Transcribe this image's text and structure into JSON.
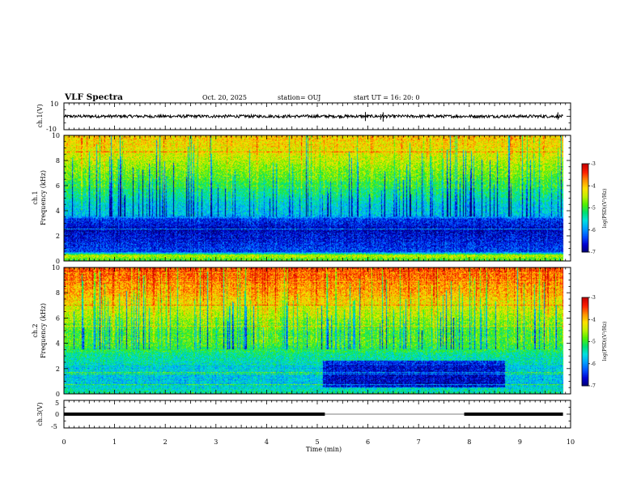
{
  "header": {
    "title": "VLF Spectra",
    "date": "Oct. 20, 2025",
    "station": "station= OUJ",
    "start": "start  UT  =   16: 20: 0"
  },
  "colors": {
    "spectrum_palette": [
      "#000070",
      "#0000d0",
      "#0050ff",
      "#00a0ff",
      "#00e0e0",
      "#00e070",
      "#50f000",
      "#c0f000",
      "#ffe000",
      "#ff9000",
      "#ff2000",
      "#c80000"
    ],
    "trace": "#000000"
  },
  "chart_data": [
    {
      "id": "ch1v",
      "type": "line",
      "ylabel": "ch.1(V)",
      "ylim": [
        -10,
        10
      ],
      "ytick_labels": [
        "10",
        "-10"
      ],
      "baseline": 0,
      "spikes": [
        {
          "x": 5.95,
          "y": [
            -3.5,
            3.2
          ]
        },
        {
          "x": 6.25,
          "y": [
            -2.5,
            1.5
          ]
        },
        {
          "x": 6.3,
          "y": [
            -4,
            3
          ]
        },
        {
          "x": 9.75,
          "y": [
            -2.5,
            3
          ]
        }
      ]
    },
    {
      "id": "ch1",
      "type": "heatmap",
      "ylabel_line1": "ch.1",
      "ylabel_line2": "Frequency  (kHz)",
      "xlim": [
        0,
        10
      ],
      "ylim": [
        0,
        10
      ],
      "data_end_x": 9.85,
      "ytick_labels": [
        "0",
        "2",
        "4",
        "6",
        "8",
        "10"
      ],
      "colorbar": {
        "label": "log(PSD)(V²/Hz)",
        "ticks": [
          "-3",
          "-4",
          "-5",
          "-6",
          "-7"
        ],
        "range": [
          -7,
          -3
        ]
      },
      "profile_log_psd": [
        {
          "f": 0.0,
          "v": -5.0
        },
        {
          "f": 0.4,
          "v": -4.4
        },
        {
          "f": 0.7,
          "v": -6.3
        },
        {
          "f": 1.5,
          "v": -6.5
        },
        {
          "f": 2.5,
          "v": -6.7
        },
        {
          "f": 3.3,
          "v": -6.4
        },
        {
          "f": 3.6,
          "v": -5.7
        },
        {
          "f": 4.5,
          "v": -5.6
        },
        {
          "f": 5.5,
          "v": -5.2
        },
        {
          "f": 7.0,
          "v": -4.7
        },
        {
          "f": 8.5,
          "v": -4.3
        },
        {
          "f": 10.0,
          "v": -4.0
        }
      ],
      "event_segments": []
    },
    {
      "id": "ch2",
      "type": "heatmap",
      "ylabel_line1": "ch.2",
      "ylabel_line2": "Frequency  (kHz)",
      "xlim": [
        0,
        10
      ],
      "ylim": [
        0,
        10
      ],
      "data_end_x": 9.85,
      "ytick_labels": [
        "0",
        "2",
        "4",
        "6",
        "8",
        "10"
      ],
      "colorbar": {
        "label": "log(PSD)(V²/Hz)",
        "ticks": [
          "-3",
          "-4",
          "-5",
          "-6",
          "-7"
        ],
        "range": [
          -7,
          -3
        ]
      },
      "profile_log_psd": [
        {
          "f": 0.0,
          "v": -5.3
        },
        {
          "f": 0.8,
          "v": -5.7
        },
        {
          "f": 2.0,
          "v": -5.6
        },
        {
          "f": 3.0,
          "v": -5.3
        },
        {
          "f": 4.0,
          "v": -4.9
        },
        {
          "f": 5.0,
          "v": -4.9
        },
        {
          "f": 6.5,
          "v": -4.4
        },
        {
          "f": 8.0,
          "v": -3.9
        },
        {
          "f": 10.0,
          "v": -3.5
        }
      ],
      "event_segments": [
        {
          "x0": 5.1,
          "x1": 8.7,
          "f0": 0.5,
          "f1": 2.6,
          "delta": -1.0
        }
      ]
    },
    {
      "id": "ch3v",
      "type": "line",
      "ylabel": "ch.3(V)",
      "ylim": [
        -5,
        5
      ],
      "ytick_labels": [
        "5",
        "0",
        "-5"
      ],
      "xlabel": "Time  (min)",
      "xlim": [
        0,
        10
      ],
      "xtick_labels": [
        "0",
        "1",
        "2",
        "3",
        "4",
        "5",
        "6",
        "7",
        "8",
        "9",
        "10"
      ],
      "segments": [
        {
          "x0": 0.0,
          "x1": 5.15,
          "y": 0
        },
        {
          "x0": 7.9,
          "x1": 9.85,
          "y": 0
        }
      ]
    }
  ]
}
